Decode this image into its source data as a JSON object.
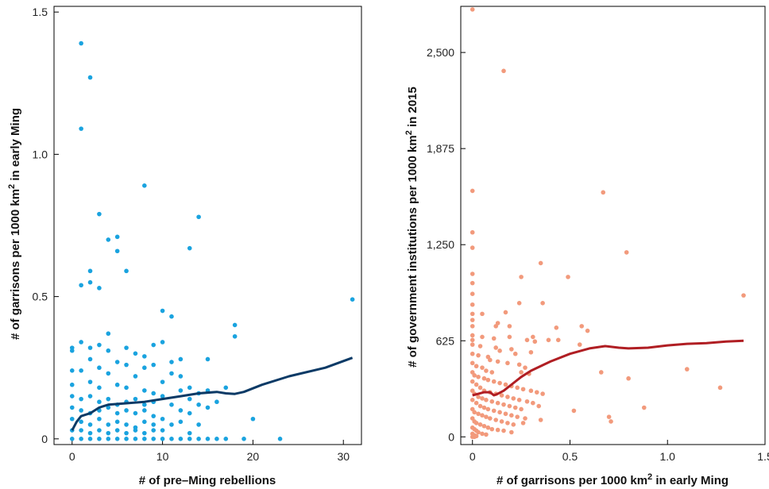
{
  "chart_data": [
    {
      "type": "scatter",
      "xlabel": "# of pre–Ming rebellions",
      "ylabel_parts": [
        "# of garrisons per 1000 km",
        "2",
        " in early Ming"
      ],
      "xlim": [
        -2,
        32
      ],
      "ylim": [
        -0.02,
        1.52
      ],
      "xticks": [
        0,
        10,
        20,
        30
      ],
      "xtick_labels": [
        "0",
        "10",
        "20",
        "30"
      ],
      "yticks": [
        0,
        0.5,
        1.0,
        1.5
      ],
      "ytick_labels": [
        "0",
        "0.5",
        "1.0",
        "1.5"
      ],
      "grid": false,
      "point_color": "#1aa3df",
      "line_color": "#0b3a66",
      "points": [
        [
          1,
          1.39
        ],
        [
          2,
          1.27
        ],
        [
          1,
          1.09
        ],
        [
          8,
          0.89
        ],
        [
          3,
          0.79
        ],
        [
          14,
          0.78
        ],
        [
          4,
          0.7
        ],
        [
          5,
          0.71
        ],
        [
          5,
          0.66
        ],
        [
          13,
          0.67
        ],
        [
          6,
          0.59
        ],
        [
          2,
          0.59
        ],
        [
          2,
          0.55
        ],
        [
          1,
          0.54
        ],
        [
          3,
          0.53
        ],
        [
          31,
          0.49
        ],
        [
          10,
          0.45
        ],
        [
          11,
          0.43
        ],
        [
          18,
          0.4
        ],
        [
          18,
          0.36
        ],
        [
          4,
          0.37
        ],
        [
          9,
          0.33
        ],
        [
          1,
          0.34
        ],
        [
          0,
          0.32
        ],
        [
          0,
          0.31
        ],
        [
          2,
          0.32
        ],
        [
          3,
          0.33
        ],
        [
          4,
          0.31
        ],
        [
          6,
          0.32
        ],
        [
          7,
          0.3
        ],
        [
          8,
          0.29
        ],
        [
          10,
          0.34
        ],
        [
          12,
          0.28
        ],
        [
          15,
          0.28
        ],
        [
          11,
          0.27
        ],
        [
          5,
          0.27
        ],
        [
          2,
          0.28
        ],
        [
          3,
          0.25
        ],
        [
          6,
          0.26
        ],
        [
          8,
          0.25
        ],
        [
          9,
          0.26
        ],
        [
          0,
          0.24
        ],
        [
          1,
          0.24
        ],
        [
          4,
          0.23
        ],
        [
          7,
          0.22
        ],
        [
          11,
          0.23
        ],
        [
          12,
          0.22
        ],
        [
          10,
          0.2
        ],
        [
          0,
          0.19
        ],
        [
          2,
          0.2
        ],
        [
          3,
          0.18
        ],
        [
          5,
          0.19
        ],
        [
          6,
          0.18
        ],
        [
          8,
          0.17
        ],
        [
          9,
          0.16
        ],
        [
          12,
          0.17
        ],
        [
          13,
          0.18
        ],
        [
          14,
          0.16
        ],
        [
          15,
          0.17
        ],
        [
          17,
          0.18
        ],
        [
          0,
          0.15
        ],
        [
          1,
          0.14
        ],
        [
          2,
          0.15
        ],
        [
          3,
          0.13
        ],
        [
          4,
          0.14
        ],
        [
          5,
          0.12
        ],
        [
          6,
          0.13
        ],
        [
          7,
          0.14
        ],
        [
          8,
          0.12
        ],
        [
          9,
          0.13
        ],
        [
          10,
          0.15
        ],
        [
          11,
          0.12
        ],
        [
          13,
          0.14
        ],
        [
          14,
          0.12
        ],
        [
          16,
          0.13
        ],
        [
          0,
          0.11
        ],
        [
          1,
          0.1
        ],
        [
          2,
          0.09
        ],
        [
          3,
          0.1
        ],
        [
          4,
          0.11
        ],
        [
          5,
          0.09
        ],
        [
          6,
          0.1
        ],
        [
          7,
          0.09
        ],
        [
          8,
          0.1
        ],
        [
          9,
          0.08
        ],
        [
          10,
          0.07
        ],
        [
          12,
          0.1
        ],
        [
          13,
          0.09
        ],
        [
          15,
          0.11
        ],
        [
          0,
          0.07
        ],
        [
          1,
          0.06
        ],
        [
          2,
          0.05
        ],
        [
          3,
          0.07
        ],
        [
          4,
          0.05
        ],
        [
          5,
          0.06
        ],
        [
          6,
          0.05
        ],
        [
          7,
          0.04
        ],
        [
          8,
          0.06
        ],
        [
          9,
          0.05
        ],
        [
          11,
          0.05
        ],
        [
          12,
          0.06
        ],
        [
          14,
          0.05
        ],
        [
          20,
          0.07
        ],
        [
          0,
          0.03
        ],
        [
          1,
          0.03
        ],
        [
          2,
          0.02
        ],
        [
          3,
          0.03
        ],
        [
          4,
          0.02
        ],
        [
          5,
          0.03
        ],
        [
          6,
          0.02
        ],
        [
          7,
          0.03
        ],
        [
          8,
          0.02
        ],
        [
          9,
          0.03
        ],
        [
          10,
          0.03
        ],
        [
          13,
          0.02
        ],
        [
          0,
          0.0
        ],
        [
          1,
          0.0
        ],
        [
          2,
          0.0
        ],
        [
          3,
          0.0
        ],
        [
          4,
          0.0
        ],
        [
          5,
          0.0
        ],
        [
          6,
          0.0
        ],
        [
          7,
          0.0
        ],
        [
          8,
          0.0
        ],
        [
          9,
          0.0
        ],
        [
          10,
          0.0
        ],
        [
          11,
          0.0
        ],
        [
          12,
          0.0
        ],
        [
          13,
          0.0
        ],
        [
          14,
          0.0
        ],
        [
          15,
          0.0
        ],
        [
          16,
          0.0
        ],
        [
          17,
          0.0
        ],
        [
          19,
          0.0
        ],
        [
          23,
          0.0
        ]
      ],
      "smooth_line": [
        [
          0,
          0.03
        ],
        [
          0.5,
          0.06
        ],
        [
          1,
          0.08
        ],
        [
          2,
          0.09
        ],
        [
          3,
          0.11
        ],
        [
          4,
          0.12
        ],
        [
          6,
          0.125
        ],
        [
          8,
          0.13
        ],
        [
          10,
          0.14
        ],
        [
          12,
          0.15
        ],
        [
          14,
          0.16
        ],
        [
          16,
          0.165
        ],
        [
          17,
          0.16
        ],
        [
          18,
          0.158
        ],
        [
          19,
          0.165
        ],
        [
          21,
          0.19
        ],
        [
          24,
          0.22
        ],
        [
          28,
          0.25
        ],
        [
          31,
          0.285
        ]
      ]
    },
    {
      "type": "scatter",
      "xlabel_parts": [
        "# of garrisons per 1000 km",
        "2",
        " in early Ming"
      ],
      "ylabel_parts": [
        "# of government institutions per 1000 km",
        "2",
        " in 2015"
      ],
      "xlim": [
        -0.06,
        1.5
      ],
      "ylim": [
        -50,
        2800
      ],
      "xticks": [
        0,
        0.5,
        1.0,
        1.5
      ],
      "xtick_labels": [
        "0",
        "0.5",
        "1.0",
        "1.5"
      ],
      "yticks": [
        0,
        625,
        1250,
        1875,
        2500
      ],
      "ytick_labels": [
        "0",
        "625",
        "1,250",
        "1,875",
        "2,500"
      ],
      "grid": false,
      "point_color": "#f29a7c",
      "line_color": "#b01e23",
      "points": [
        [
          0,
          2780
        ],
        [
          0.16,
          2380
        ],
        [
          0,
          1600
        ],
        [
          0.67,
          1590
        ],
        [
          0,
          1330
        ],
        [
          0,
          1230
        ],
        [
          0.79,
          1200
        ],
        [
          0.35,
          1130
        ],
        [
          0,
          1060
        ],
        [
          0.25,
          1040
        ],
        [
          0.49,
          1040
        ],
        [
          0,
          1000
        ],
        [
          0,
          930
        ],
        [
          0,
          860
        ],
        [
          0,
          800
        ],
        [
          1.39,
          920
        ],
        [
          0.24,
          870
        ],
        [
          0.36,
          870
        ],
        [
          0.05,
          800
        ],
        [
          0.17,
          810
        ],
        [
          0.13,
          740
        ],
        [
          0,
          760
        ],
        [
          0,
          720
        ],
        [
          0.12,
          720
        ],
        [
          0.19,
          720
        ],
        [
          0.56,
          720
        ],
        [
          0.59,
          690
        ],
        [
          0.43,
          710
        ],
        [
          0,
          660
        ],
        [
          0.05,
          650
        ],
        [
          0,
          630
        ],
        [
          0.11,
          640
        ],
        [
          0.19,
          650
        ],
        [
          0.31,
          650
        ],
        [
          0.39,
          630
        ],
        [
          0.44,
          630
        ],
        [
          0.28,
          630
        ],
        [
          0.32,
          620
        ],
        [
          0.55,
          600
        ],
        [
          0,
          600
        ],
        [
          0.04,
          590
        ],
        [
          0.12,
          580
        ],
        [
          0.14,
          560
        ],
        [
          0.2,
          570
        ],
        [
          0.22,
          540
        ],
        [
          0.3,
          550
        ],
        [
          0,
          540
        ],
        [
          0.03,
          530
        ],
        [
          0.08,
          520
        ],
        [
          0.09,
          500
        ],
        [
          0.13,
          490
        ],
        [
          0.18,
          480
        ],
        [
          0.24,
          470
        ],
        [
          0.27,
          450
        ],
        [
          0.0,
          480
        ],
        [
          0.02,
          460
        ],
        [
          0.05,
          450
        ],
        [
          0.07,
          430
        ],
        [
          0.1,
          420
        ],
        [
          0.25,
          420
        ],
        [
          0.29,
          410
        ],
        [
          0.66,
          420
        ],
        [
          0.8,
          380
        ],
        [
          1.1,
          440
        ],
        [
          0,
          420
        ],
        [
          0.01,
          400
        ],
        [
          0.03,
          390
        ],
        [
          0.06,
          380
        ],
        [
          0.08,
          370
        ],
        [
          0.11,
          360
        ],
        [
          0.14,
          350
        ],
        [
          0.17,
          340
        ],
        [
          0.2,
          330
        ],
        [
          0.23,
          320
        ],
        [
          0.26,
          310
        ],
        [
          0.3,
          300
        ],
        [
          0.33,
          290
        ],
        [
          0.36,
          280
        ],
        [
          0.0,
          360
        ],
        [
          0.02,
          340
        ],
        [
          0.04,
          320
        ],
        [
          0.06,
          300
        ],
        [
          0.09,
          290
        ],
        [
          0.12,
          280
        ],
        [
          0.15,
          270
        ],
        [
          0.18,
          260
        ],
        [
          0.21,
          250
        ],
        [
          0.24,
          240
        ],
        [
          0.28,
          230
        ],
        [
          0.31,
          220
        ],
        [
          1.27,
          320
        ],
        [
          0.0,
          300
        ],
        [
          0.01,
          280
        ],
        [
          0.03,
          260
        ],
        [
          0.05,
          250
        ],
        [
          0.07,
          240
        ],
        [
          0.1,
          230
        ],
        [
          0.13,
          220
        ],
        [
          0.16,
          210
        ],
        [
          0.19,
          200
        ],
        [
          0.22,
          190
        ],
        [
          0.25,
          180
        ],
        [
          0.34,
          200
        ],
        [
          0.88,
          190
        ],
        [
          0.52,
          170
        ],
        [
          0.0,
          240
        ],
        [
          0.02,
          220
        ],
        [
          0.04,
          200
        ],
        [
          0.06,
          190
        ],
        [
          0.08,
          180
        ],
        [
          0.11,
          170
        ],
        [
          0.14,
          160
        ],
        [
          0.17,
          150
        ],
        [
          0.2,
          140
        ],
        [
          0.23,
          130
        ],
        [
          0.27,
          120
        ],
        [
          0.35,
          110
        ],
        [
          0.7,
          130
        ],
        [
          0.71,
          100
        ],
        [
          0.0,
          180
        ],
        [
          0.01,
          160
        ],
        [
          0.03,
          150
        ],
        [
          0.05,
          140
        ],
        [
          0.07,
          130
        ],
        [
          0.09,
          120
        ],
        [
          0.12,
          110
        ],
        [
          0.15,
          100
        ],
        [
          0.18,
          90
        ],
        [
          0.21,
          80
        ],
        [
          0.26,
          90
        ],
        [
          0.0,
          120
        ],
        [
          0.01,
          100
        ],
        [
          0.02,
          90
        ],
        [
          0.04,
          80
        ],
        [
          0.06,
          70
        ],
        [
          0.08,
          60
        ],
        [
          0.1,
          50
        ],
        [
          0.13,
          45
        ],
        [
          0.16,
          40
        ],
        [
          0.2,
          30
        ],
        [
          0.0,
          60
        ],
        [
          0.01,
          50
        ],
        [
          0.02,
          40
        ],
        [
          0.03,
          30
        ],
        [
          0.05,
          20
        ],
        [
          0.07,
          15
        ],
        [
          0.0,
          20
        ],
        [
          0.01,
          10
        ],
        [
          0.02,
          5
        ],
        [
          0.0,
          0
        ],
        [
          0.01,
          0
        ]
      ],
      "smooth_line": [
        [
          0,
          270
        ],
        [
          0.03,
          280
        ],
        [
          0.06,
          290
        ],
        [
          0.09,
          290
        ],
        [
          0.11,
          270
        ],
        [
          0.13,
          280
        ],
        [
          0.16,
          300
        ],
        [
          0.2,
          340
        ],
        [
          0.25,
          390
        ],
        [
          0.3,
          430
        ],
        [
          0.4,
          490
        ],
        [
          0.5,
          540
        ],
        [
          0.6,
          575
        ],
        [
          0.68,
          590
        ],
        [
          0.75,
          580
        ],
        [
          0.8,
          575
        ],
        [
          0.9,
          580
        ],
        [
          1.0,
          595
        ],
        [
          1.1,
          605
        ],
        [
          1.2,
          610
        ],
        [
          1.3,
          620
        ],
        [
          1.39,
          625
        ]
      ]
    }
  ]
}
